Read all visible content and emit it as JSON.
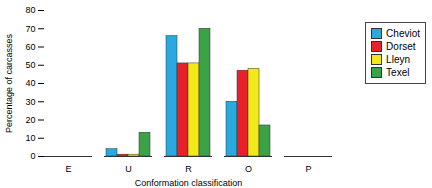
{
  "chart_data": {
    "type": "bar",
    "x_label": "Conformation classification",
    "y_label": "Percentage of carcasses",
    "categories": [
      "E",
      "U",
      "R",
      "O",
      "P"
    ],
    "series": [
      {
        "name": "Cheviot",
        "color": "#29a9e0",
        "values": [
          0,
          4,
          66,
          30,
          0
        ]
      },
      {
        "name": "Dorset",
        "color": "#e8202a",
        "values": [
          0,
          1,
          51,
          47,
          0
        ]
      },
      {
        "name": "Lleyn",
        "color": "#f3e81a",
        "values": [
          0,
          1,
          51,
          48,
          0
        ]
      },
      {
        "name": "Texel",
        "color": "#3aa346",
        "values": [
          0,
          13,
          70,
          17,
          0
        ]
      }
    ],
    "ylim": [
      0,
      80
    ],
    "yticks": [
      0,
      10,
      20,
      30,
      40,
      50,
      60,
      70,
      80
    ],
    "grid": false,
    "legend": "right"
  }
}
